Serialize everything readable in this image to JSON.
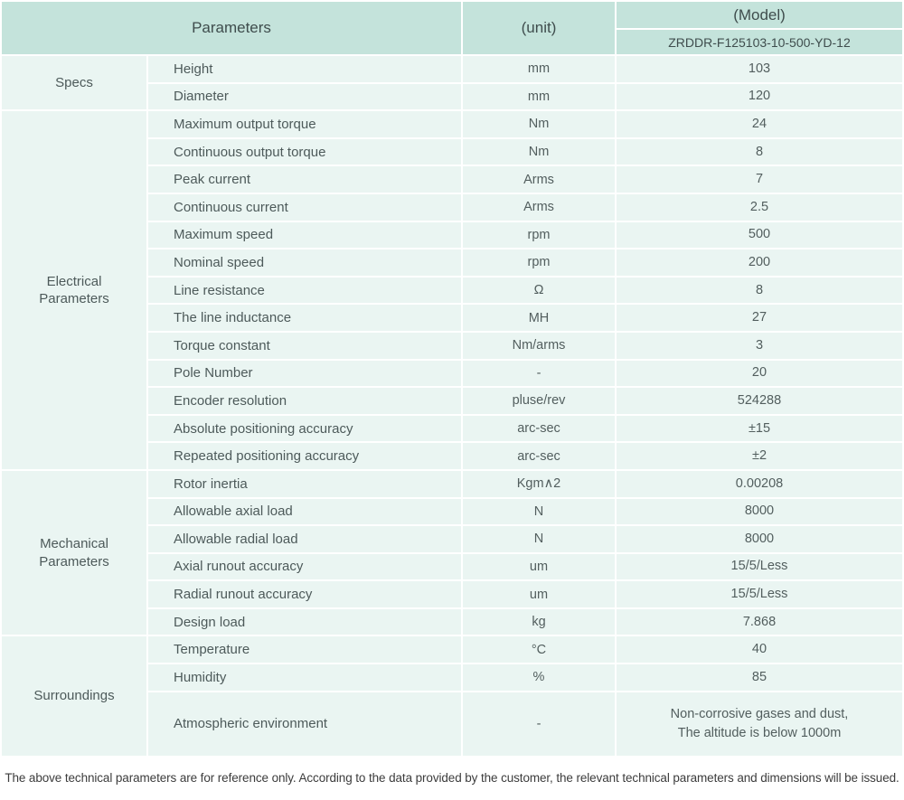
{
  "header": {
    "parameters_label": "Parameters",
    "unit_label": "(unit)",
    "model_label": "(Model)",
    "model_value": "ZRDDR-F125103-10-500-YD-12"
  },
  "sections": [
    {
      "group": "Specs",
      "rows": [
        {
          "name": "Height",
          "unit": "mm",
          "value": "103"
        },
        {
          "name": "Diameter",
          "unit": "mm",
          "value": "120"
        }
      ]
    },
    {
      "group": "Electrical Parameters",
      "rows": [
        {
          "name": "Maximum output torque",
          "unit": "Nm",
          "value": "24"
        },
        {
          "name": "Continuous output torque",
          "unit": "Nm",
          "value": "8"
        },
        {
          "name": "Peak current",
          "unit": "Arms",
          "value": "7"
        },
        {
          "name": "Continuous current",
          "unit": "Arms",
          "value": "2.5"
        },
        {
          "name": "Maximum speed",
          "unit": "rpm",
          "value": "500"
        },
        {
          "name": "Nominal speed",
          "unit": "rpm",
          "value": "200"
        },
        {
          "name": "Line resistance",
          "unit": "Ω",
          "value": "8"
        },
        {
          "name": "The line inductance",
          "unit": "MH",
          "value": "27"
        },
        {
          "name": "Torque constant",
          "unit": "Nm/arms",
          "value": "3"
        },
        {
          "name": "Pole Number",
          "unit": "-",
          "value": "20"
        },
        {
          "name": "Encoder resolution",
          "unit": "pluse/rev",
          "value": "524288"
        },
        {
          "name": "Absolute positioning accuracy",
          "unit": "arc-sec",
          "value": "±15"
        },
        {
          "name": "Repeated positioning accuracy",
          "unit": "arc-sec",
          "value": "±2"
        }
      ]
    },
    {
      "group": "Mechanical Parameters",
      "rows": [
        {
          "name": "Rotor inertia",
          "unit": "Kgm∧2",
          "value": "0.00208"
        },
        {
          "name": "Allowable axial load",
          "unit": "N",
          "value": "8000"
        },
        {
          "name": "Allowable radial load",
          "unit": "N",
          "value": "8000"
        },
        {
          "name": "Axial runout accuracy",
          "unit": "um",
          "value": "15/5/Less"
        },
        {
          "name": "Radial runout accuracy",
          "unit": "um",
          "value": "15/5/Less"
        },
        {
          "name": "Design load",
          "unit": "kg",
          "value": "7.868"
        }
      ]
    },
    {
      "group": "Surroundings",
      "rows": [
        {
          "name": "Temperature",
          "unit": "°C",
          "value": "40"
        },
        {
          "name": "Humidity",
          "unit": "%",
          "value": "85"
        },
        {
          "name": "Atmospheric environment",
          "unit": "-",
          "value": "Non-corrosive gases and dust,\nThe altitude is below 1000m",
          "tall": true
        }
      ]
    }
  ],
  "footer": {
    "note": "The above technical parameters are for reference only. According to the data provided by the customer, the relevant technical parameters and dimensions will be issued."
  },
  "colors": {
    "header_bg": "#c4e3db",
    "row_bg": "#eaf5f2",
    "separator": "#ffffff",
    "header_text": "#3f4d4d",
    "body_text": "#525e5e",
    "footer_text": "#3c3c3c"
  }
}
